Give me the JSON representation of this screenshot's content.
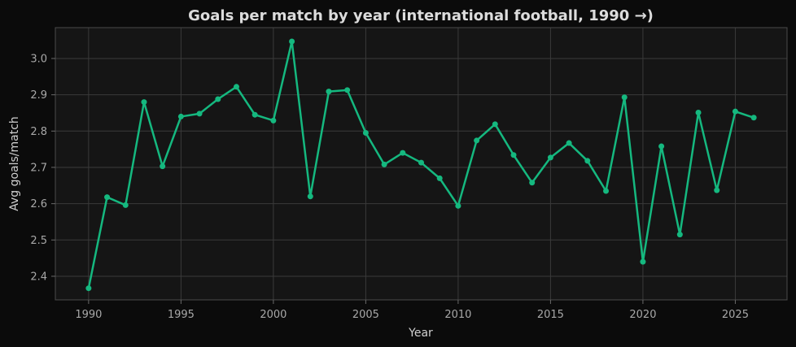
{
  "chart_data": {
    "type": "line",
    "title": "Goals per match by year (international football, 1990 →)",
    "xlabel": "Year",
    "ylabel": "Avg goals/match",
    "xlim": [
      1988.2,
      2027.8
    ],
    "ylim": [
      2.335,
      3.085
    ],
    "xticks": [
      1990,
      1995,
      2000,
      2005,
      2010,
      2015,
      2020,
      2025
    ],
    "yticks": [
      2.4,
      2.5,
      2.6,
      2.7,
      2.8,
      2.9,
      3.0
    ],
    "ytick_labels": [
      "2.4",
      "2.5",
      "2.6",
      "2.7",
      "2.8",
      "2.9",
      "3.0"
    ],
    "grid": true,
    "colors": {
      "line": "#15b87f",
      "background": "#151515",
      "page": "#0b0b0b"
    },
    "series": [
      {
        "x": [
          1990,
          1991,
          1992,
          1993,
          1994,
          1995,
          1996,
          1997,
          1998,
          1999,
          2000,
          2001,
          2002,
          2003,
          2004,
          2005,
          2006,
          2007,
          2008,
          2009,
          2010,
          2011,
          2012,
          2013,
          2014,
          2015,
          2016,
          2017,
          2018,
          2019,
          2020,
          2021,
          2022,
          2023,
          2024,
          2025,
          2026
        ],
        "values": [
          2.367,
          2.618,
          2.596,
          2.88,
          2.703,
          2.84,
          2.848,
          2.888,
          2.922,
          2.845,
          2.829,
          3.047,
          2.62,
          2.909,
          2.913,
          2.795,
          2.708,
          2.74,
          2.713,
          2.67,
          2.594,
          2.774,
          2.819,
          2.734,
          2.658,
          2.727,
          2.767,
          2.718,
          2.635,
          2.893,
          2.44,
          2.758,
          2.515,
          2.851,
          2.637,
          2.854,
          2.837
        ]
      }
    ]
  }
}
